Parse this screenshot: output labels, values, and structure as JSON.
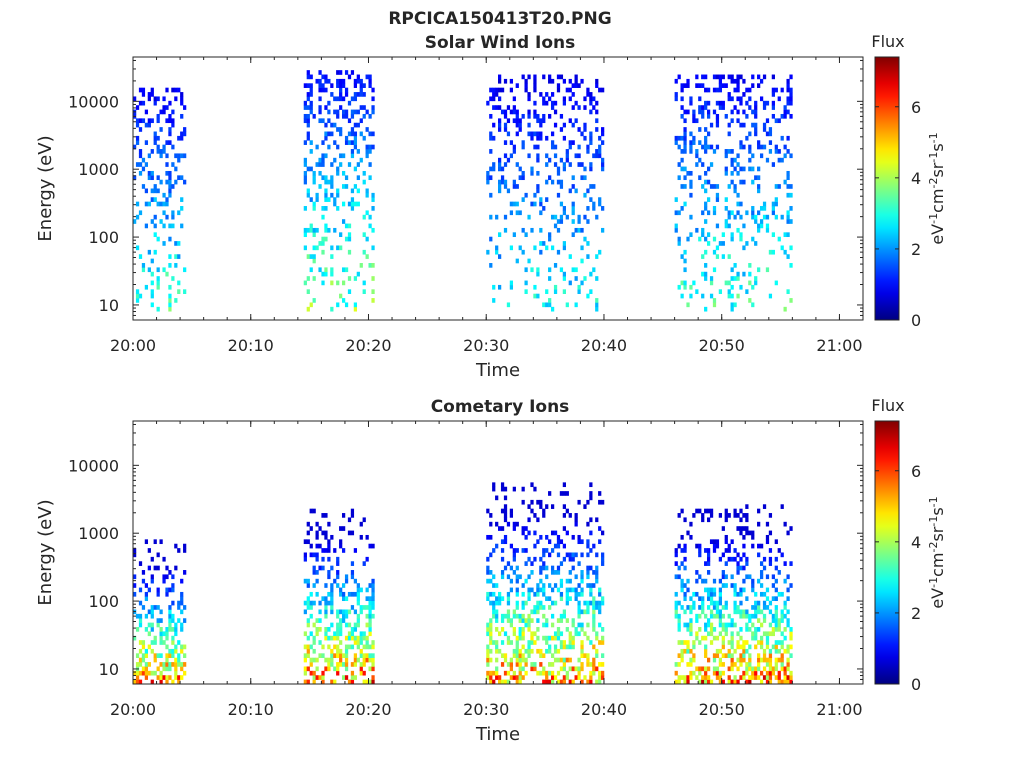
{
  "figure_title": "RPCICA150413T20.PNG",
  "chart_data": [
    {
      "type": "heatmap",
      "title": "Solar Wind Ions",
      "xlabel": "Time",
      "ylabel": "Energy (eV)",
      "y_scale": "log",
      "ylim": [
        6,
        45000
      ],
      "x_ticks": [
        "20:00",
        "20:10",
        "20:20",
        "20:30",
        "20:40",
        "20:50",
        "21:00"
      ],
      "y_ticks": [
        "10",
        "100",
        "1000",
        "10000"
      ],
      "colorbar": {
        "label": "Flux",
        "unit_label": "eV-1cm-2sr-1s-1",
        "range": [
          0,
          7.4
        ],
        "ticks": [
          "0",
          "2",
          "4",
          "6"
        ],
        "colormap": "jet"
      },
      "bursts": [
        {
          "t_start": "20:00",
          "t_end": "20:04.5",
          "e_min": 7,
          "e_max": 14000,
          "flux_max": 4.0,
          "density": 0.35
        },
        {
          "t_start": "20:14.5",
          "t_end": "20:20.5",
          "e_min": 7,
          "e_max": 26000,
          "flux_max": 4.5,
          "density": 0.35
        },
        {
          "t_start": "20:30",
          "t_end": "20:40",
          "e_min": 7,
          "e_max": 22000,
          "flux_max": 3.5,
          "density": 0.25
        },
        {
          "t_start": "20:46",
          "t_end": "20:56",
          "e_min": 7,
          "e_max": 24000,
          "flux_max": 4.0,
          "density": 0.3
        }
      ]
    },
    {
      "type": "heatmap",
      "title": "Cometary Ions",
      "xlabel": "Time",
      "ylabel": "Energy (eV)",
      "y_scale": "log",
      "ylim": [
        6,
        45000
      ],
      "x_ticks": [
        "20:00",
        "20:10",
        "20:20",
        "20:30",
        "20:40",
        "20:50",
        "21:00"
      ],
      "y_ticks": [
        "10",
        "100",
        "1000",
        "10000"
      ],
      "colorbar": {
        "label": "Flux",
        "unit_label": "eV-1cm-2sr-1s-1",
        "range": [
          0,
          7.4
        ],
        "ticks": [
          "0",
          "2",
          "4",
          "6"
        ],
        "colormap": "jet"
      },
      "bursts": [
        {
          "t_start": "20:00",
          "t_end": "20:04.5",
          "e_min": 6,
          "e_max": 800,
          "flux_max": 6.8,
          "density": 0.55
        },
        {
          "t_start": "20:14.5",
          "t_end": "20:20.5",
          "e_min": 6,
          "e_max": 2200,
          "flux_max": 7.0,
          "density": 0.55
        },
        {
          "t_start": "20:30",
          "t_end": "20:40",
          "e_min": 6,
          "e_max": 5200,
          "flux_max": 6.8,
          "density": 0.5
        },
        {
          "t_start": "20:46",
          "t_end": "20:56",
          "e_min": 6,
          "e_max": 2400,
          "flux_max": 7.0,
          "density": 0.55
        }
      ]
    }
  ]
}
